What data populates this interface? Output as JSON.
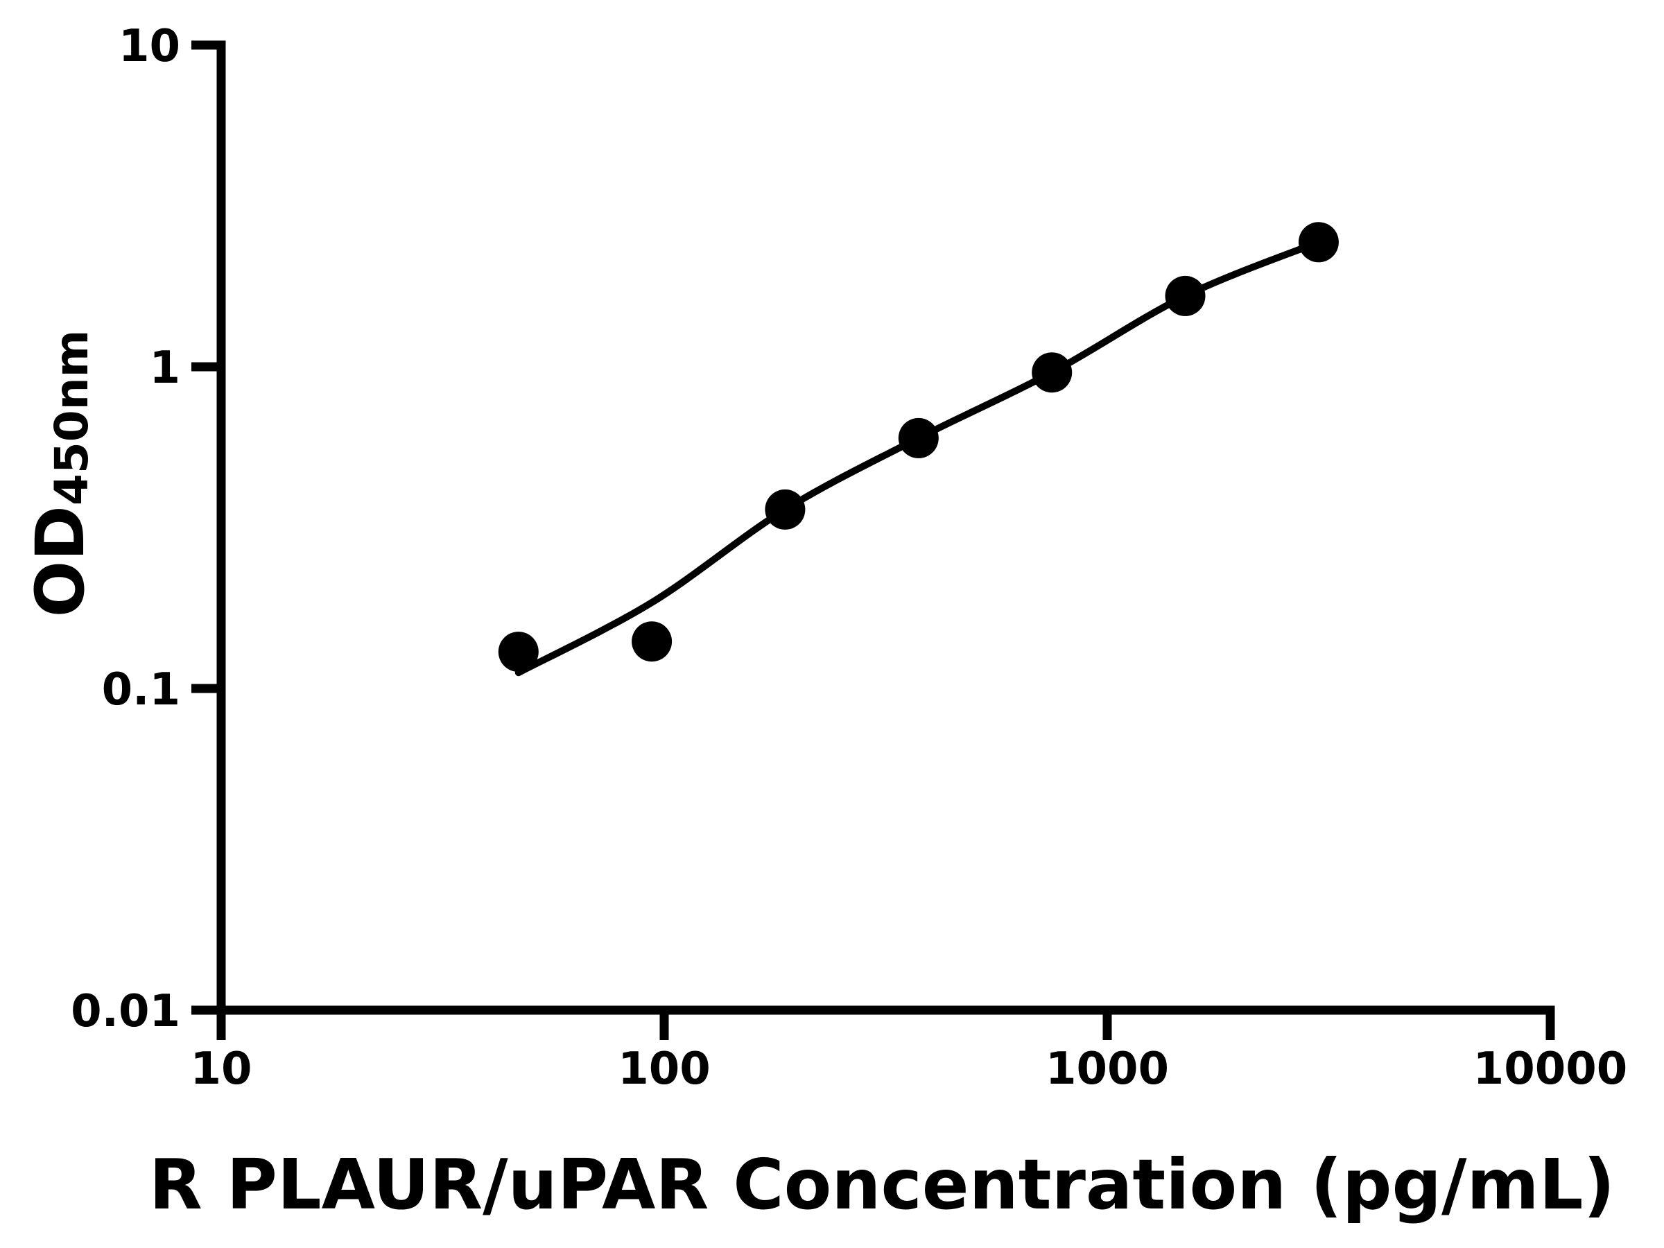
{
  "chart_data": {
    "type": "scatter",
    "title": "",
    "xlabel": "R PLAUR/uPAR Concentration (pg/mL)",
    "ylabel": "OD450nm",
    "ylabel_main": "OD",
    "ylabel_sub": "450nm",
    "x_scale": "log",
    "y_scale": "log",
    "xlim": [
      10,
      10000
    ],
    "ylim": [
      0.01,
      10
    ],
    "grid": false,
    "legend": false,
    "x_ticks": [
      {
        "value": 10,
        "label": "10"
      },
      {
        "value": 100,
        "label": "100"
      },
      {
        "value": 1000,
        "label": "1000"
      },
      {
        "value": 10000,
        "label": "10000"
      }
    ],
    "y_ticks": [
      {
        "value": 10,
        "label": "10"
      },
      {
        "value": 1,
        "label": "1"
      },
      {
        "value": 0.1,
        "label": "0.1"
      },
      {
        "value": 0.01,
        "label": "0.01"
      }
    ],
    "series": [
      {
        "name": "standards",
        "type": "scatter",
        "marker": "filled-circle",
        "color": "#000000",
        "x": [
          46.88,
          93.75,
          187.5,
          375,
          750,
          1500,
          3000
        ],
        "y": [
          0.13,
          0.14,
          0.36,
          0.6,
          0.96,
          1.66,
          2.44
        ]
      },
      {
        "name": "fitted-curve",
        "type": "line",
        "color": "#000000",
        "x": [
          46.88,
          93.75,
          187.5,
          375,
          750,
          1500,
          3000
        ],
        "y": [
          0.112,
          0.185,
          0.36,
          0.6,
          0.96,
          1.66,
          2.44
        ]
      }
    ],
    "colors": {
      "foreground": "#000000",
      "background": "#ffffff"
    }
  }
}
